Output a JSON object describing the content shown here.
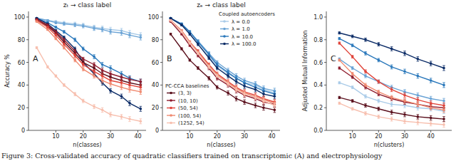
{
  "chart_data": [
    {
      "type": "line",
      "title": "zₜ → class label",
      "panel_label": "A",
      "x_label": "n(classes)",
      "y_label": "Accuracy %",
      "x": [
        3,
        7,
        10,
        13,
        17,
        20,
        24,
        27,
        30,
        34,
        37,
        41
      ],
      "xlim": [
        0,
        43
      ],
      "xticks": [
        10,
        20,
        30,
        40
      ],
      "ylim": [
        0,
        105
      ],
      "yticks": [
        0,
        20,
        40,
        60,
        80,
        100
      ],
      "series": [
        {
          "color": "#a9cbe8",
          "marker": "circle",
          "values": [
            99,
            97,
            96,
            95,
            94,
            93,
            91,
            90,
            89,
            88,
            86,
            84
          ],
          "errors": [
            0.5,
            0.8,
            1,
            1.2,
            1.5,
            1.5,
            1.8,
            2,
            2,
            2,
            2.2,
            2.2
          ]
        },
        {
          "color": "#6aa3d5",
          "marker": "circle",
          "values": [
            99,
            97,
            95,
            94,
            93,
            92,
            90,
            89,
            87,
            86,
            84,
            82
          ],
          "errors": [
            0.5,
            0.8,
            1,
            1.2,
            1.5,
            1.5,
            1.8,
            2,
            2,
            2,
            2.2,
            2.2
          ]
        },
        {
          "color": "#2a78bb",
          "marker": "circle",
          "values": [
            99,
            95,
            91,
            87,
            80,
            72,
            65,
            58,
            55,
            50,
            46,
            43
          ],
          "errors": [
            0.5,
            0.8,
            1,
            1.2,
            1.5,
            1.5,
            1.8,
            2,
            2,
            2,
            2.2,
            2.2
          ]
        },
        {
          "color": "#0b2b66",
          "marker": "circle",
          "values": [
            99,
            94,
            88,
            82,
            72,
            60,
            50,
            42,
            35,
            30,
            24,
            19
          ],
          "errors": [
            0.5,
            0.8,
            1,
            1.2,
            1.5,
            1.5,
            1.8,
            2,
            2,
            2,
            2.2,
            2.2
          ]
        },
        {
          "color": "#5a0f1c",
          "marker": "circle",
          "values": [
            98,
            92,
            86,
            78,
            68,
            60,
            55,
            50,
            47,
            44,
            42,
            40
          ],
          "errors": [
            0.5,
            0.8,
            1,
            1.2,
            1.5,
            1.5,
            1.8,
            2,
            2,
            2,
            2.2,
            2.2
          ]
        },
        {
          "color": "#8e1c2d",
          "marker": "circle",
          "values": [
            98,
            93,
            87,
            80,
            70,
            63,
            58,
            53,
            50,
            47,
            45,
            43
          ],
          "errors": [
            0.5,
            0.8,
            1,
            1.2,
            1.5,
            1.5,
            1.8,
            2,
            2,
            2,
            2.2,
            2.2
          ]
        },
        {
          "color": "#e0443a",
          "marker": "circle",
          "values": [
            97,
            91,
            84,
            76,
            66,
            58,
            52,
            48,
            44,
            42,
            40,
            38
          ],
          "errors": [
            0.5,
            0.8,
            1,
            1.2,
            1.5,
            1.5,
            1.8,
            2,
            2,
            2,
            2.2,
            2.2
          ]
        },
        {
          "color": "#f08a70",
          "marker": "circle",
          "values": [
            96,
            89,
            81,
            73,
            62,
            54,
            48,
            44,
            41,
            38,
            36,
            34
          ],
          "errors": [
            0.5,
            0.8,
            1,
            1.2,
            1.5,
            1.5,
            1.8,
            2,
            2,
            2,
            2.2,
            2.2
          ]
        },
        {
          "color": "#f7bfae",
          "marker": "circle",
          "values": [
            73,
            56,
            48,
            40,
            32,
            26,
            21,
            18,
            14,
            12,
            10,
            8
          ],
          "errors": [
            0.8,
            1,
            1,
            1.2,
            1.5,
            1.5,
            1.8,
            2,
            2,
            2,
            2.2,
            2.2
          ]
        }
      ]
    },
    {
      "type": "line",
      "title": "zₑ → class label",
      "panel_label": "B",
      "x_label": "n(classes)",
      "x": [
        3,
        7,
        10,
        13,
        17,
        20,
        24,
        27,
        30,
        34,
        37,
        41
      ],
      "xlim": [
        0,
        43
      ],
      "xticks": [
        10,
        20,
        30,
        40
      ],
      "ylim": [
        0,
        105
      ],
      "yticks": [
        0,
        20,
        40,
        60,
        80,
        100
      ],
      "legend_groups": [
        {
          "title": "Coupled autoencoders",
          "legend": "upper right",
          "series": [
            0,
            1,
            2,
            3
          ]
        },
        {
          "title": "PC-CCA baselines",
          "legend": "lower left",
          "series": [
            4,
            5,
            6,
            7,
            8
          ]
        }
      ],
      "series": [
        {
          "name": "λ = 0.0",
          "color": "#a9cbe8",
          "marker": "circle",
          "values": [
            99,
            93,
            85,
            76,
            65,
            57,
            50,
            46,
            42,
            40,
            36,
            33
          ],
          "errors": [
            0.5,
            0.8,
            1,
            1.2,
            1.5,
            1.5,
            1.8,
            2,
            2,
            2,
            2.2,
            2.2
          ]
        },
        {
          "name": "λ = 1.0",
          "color": "#6aa3d5",
          "marker": "circle",
          "values": [
            99,
            94,
            87,
            79,
            68,
            60,
            53,
            48,
            44,
            41,
            37,
            35
          ],
          "errors": [
            0.5,
            0.8,
            1,
            1.2,
            1.5,
            1.5,
            1.8,
            2,
            2,
            2,
            2.2,
            2.2
          ]
        },
        {
          "name": "λ = 10.0",
          "color": "#2a78bb",
          "marker": "circle",
          "values": [
            99,
            94,
            87,
            78,
            67,
            58,
            51,
            46,
            42,
            38,
            35,
            32
          ],
          "errors": [
            0.5,
            0.8,
            1,
            1.2,
            1.5,
            1.5,
            1.8,
            2,
            2,
            2,
            2.2,
            2.2
          ]
        },
        {
          "name": "λ = 100.0",
          "color": "#0b2b66",
          "marker": "circle",
          "values": [
            99,
            93,
            85,
            76,
            64,
            55,
            48,
            43,
            39,
            36,
            32,
            30
          ],
          "errors": [
            0.5,
            0.8,
            1,
            1.2,
            1.5,
            1.5,
            1.8,
            2,
            2,
            2,
            2.2,
            2.2
          ]
        },
        {
          "name": "(3, 3)",
          "color": "#5a0f1c",
          "marker": "circle",
          "values": [
            85,
            72,
            62,
            55,
            46,
            38,
            33,
            28,
            25,
            22,
            20,
            18
          ],
          "errors": [
            0.8,
            1,
            1,
            1.2,
            1.5,
            1.5,
            1.8,
            2,
            2,
            2,
            2.2,
            2.2
          ]
        },
        {
          "name": "(10, 10)",
          "color": "#8e1c2d",
          "marker": "circle",
          "values": [
            96,
            85,
            75,
            66,
            55,
            46,
            40,
            35,
            31,
            28,
            25,
            23
          ],
          "errors": [
            0.5,
            0.8,
            1,
            1.2,
            1.5,
            1.5,
            1.8,
            2,
            2,
            2,
            2.2,
            2.2
          ]
        },
        {
          "name": "(50, 54)",
          "color": "#e0443a",
          "marker": "circle",
          "values": [
            97,
            88,
            78,
            70,
            58,
            50,
            43,
            38,
            34,
            31,
            28,
            25
          ],
          "errors": [
            0.5,
            0.8,
            1,
            1.2,
            1.5,
            1.5,
            1.8,
            2,
            2,
            2,
            2.2,
            2.2
          ]
        },
        {
          "name": "(100, 54)",
          "color": "#f08a70",
          "marker": "circle",
          "values": [
            97,
            88,
            78,
            69,
            57,
            49,
            42,
            37,
            33,
            30,
            27,
            24
          ],
          "errors": [
            0.5,
            0.8,
            1,
            1.2,
            1.5,
            1.5,
            1.8,
            2,
            2,
            2,
            2.2,
            2.2
          ]
        },
        {
          "name": "(1252, 54)",
          "color": "#f7bfae",
          "marker": "circle",
          "values": [
            97,
            87,
            77,
            68,
            56,
            48,
            41,
            36,
            32,
            29,
            26,
            22
          ],
          "errors": [
            0.5,
            0.8,
            1,
            1.2,
            1.5,
            1.5,
            1.8,
            2,
            2,
            2,
            2.2,
            2.2
          ]
        }
      ]
    },
    {
      "type": "line",
      "panel_label": "C",
      "x_label": "n(clusters)",
      "y_label": "Adjusted Mutual Information",
      "x": [
        5,
        10,
        15,
        20,
        25,
        30,
        35,
        40,
        45
      ],
      "xlim": [
        0,
        48
      ],
      "xticks": [
        10,
        20,
        30,
        40
      ],
      "ylim": [
        0,
        1.05
      ],
      "yticks": [
        {
          "value": 0,
          "label": "0.0"
        },
        {
          "value": 0.2,
          "label": "0.2"
        },
        {
          "value": 0.4,
          "label": "0.4"
        },
        {
          "value": 0.6,
          "label": "0.6"
        },
        {
          "value": 0.8,
          "label": "0.8"
        },
        {
          "value": 1,
          "label": "1.0"
        }
      ],
      "series": [
        {
          "color": "#a9cbe8",
          "marker": "circle",
          "values": [
            0.42,
            0.38,
            0.3,
            0.26,
            0.23,
            0.22,
            0.2,
            0.19,
            0.17
          ],
          "errors": [
            0.01,
            0.012,
            0.015,
            0.015,
            0.018,
            0.02,
            0.02,
            0.02,
            0.022
          ]
        },
        {
          "color": "#6aa3d5",
          "marker": "circle",
          "values": [
            0.63,
            0.55,
            0.48,
            0.43,
            0.38,
            0.34,
            0.31,
            0.28,
            0.26
          ],
          "errors": [
            0.01,
            0.012,
            0.015,
            0.015,
            0.018,
            0.02,
            0.02,
            0.02,
            0.022
          ]
        },
        {
          "color": "#2a78bb",
          "marker": "circle",
          "values": [
            0.81,
            0.75,
            0.68,
            0.62,
            0.56,
            0.52,
            0.48,
            0.44,
            0.4
          ],
          "errors": [
            0.01,
            0.012,
            0.015,
            0.015,
            0.018,
            0.02,
            0.02,
            0.02,
            0.022
          ]
        },
        {
          "color": "#0b2b66",
          "marker": "circle",
          "values": [
            0.86,
            0.83,
            0.8,
            0.76,
            0.72,
            0.68,
            0.63,
            0.59,
            0.55
          ],
          "errors": [
            0.01,
            0.012,
            0.015,
            0.015,
            0.018,
            0.02,
            0.02,
            0.02,
            0.022
          ]
        },
        {
          "color": "#5a0f1c",
          "marker": "circle",
          "values": [
            0.29,
            0.26,
            0.22,
            0.19,
            0.16,
            0.14,
            0.12,
            0.11,
            0.1
          ],
          "errors": [
            0.01,
            0.012,
            0.015,
            0.015,
            0.018,
            0.02,
            0.02,
            0.02,
            0.022
          ]
        },
        {
          "color": "#8e1c2d",
          "marker": "circle",
          "values": [
            0.55,
            0.47,
            0.38,
            0.32,
            0.28,
            0.25,
            0.23,
            0.21,
            0.2
          ],
          "errors": [
            0.01,
            0.012,
            0.015,
            0.015,
            0.018,
            0.02,
            0.02,
            0.02,
            0.022
          ]
        },
        {
          "color": "#e0443a",
          "marker": "circle",
          "values": [
            0.77,
            0.65,
            0.52,
            0.43,
            0.36,
            0.31,
            0.27,
            0.24,
            0.22
          ],
          "errors": [
            0.01,
            0.012,
            0.015,
            0.015,
            0.018,
            0.02,
            0.02,
            0.02,
            0.022
          ]
        },
        {
          "color": "#f08a70",
          "marker": "circle",
          "values": [
            0.62,
            0.5,
            0.4,
            0.34,
            0.29,
            0.26,
            0.23,
            0.2,
            0.18
          ],
          "errors": [
            0.01,
            0.012,
            0.015,
            0.015,
            0.018,
            0.02,
            0.02,
            0.02,
            0.022
          ]
        },
        {
          "color": "#f7bfae",
          "marker": "circle",
          "values": [
            0.24,
            0.19,
            0.15,
            0.12,
            0.1,
            0.08,
            0.07,
            0.06,
            0.05
          ],
          "errors": [
            0.01,
            0.012,
            0.015,
            0.015,
            0.018,
            0.02,
            0.02,
            0.02,
            0.022
          ]
        }
      ]
    }
  ],
  "caption": "Figure 3: Cross-validated accuracy of quadratic classifiers trained on transcriptomic (A) and electrophysiology"
}
